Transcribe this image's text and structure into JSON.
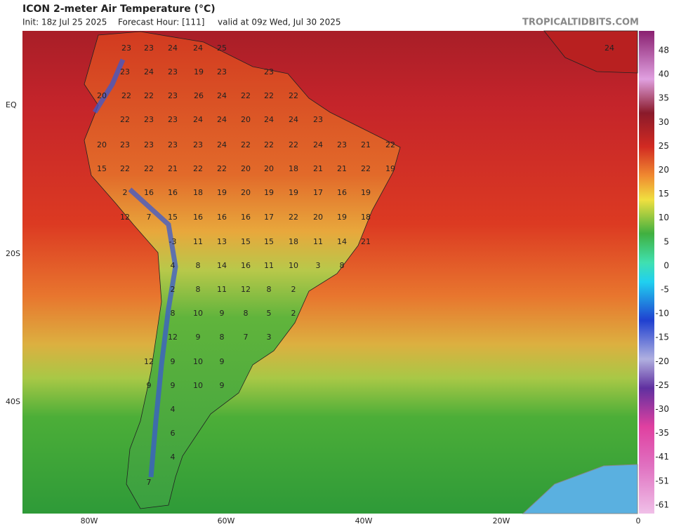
{
  "header": {
    "title": "ICON 2-meter Air Temperature (°C)",
    "init": "Init: 18z Jul 25 2025",
    "forecast": "Forecast Hour: [111]",
    "valid": "valid at 09z Wed, Jul 30 2025",
    "site": "TROPICALTIDBITS.COM"
  },
  "longitude_labels": [
    "80W",
    "60W",
    "40W",
    "20W",
    "0"
  ],
  "latitude_labels": [
    "EQ",
    "20S",
    "40S"
  ],
  "colorbar_labels": [
    48,
    40,
    35,
    30,
    25,
    20,
    15,
    10,
    5,
    0,
    -5,
    -10,
    -15,
    -20,
    -25,
    -30,
    -35,
    -41,
    -51,
    -61
  ],
  "station_values": [
    [
      23,
      23,
      24,
      24,
      25,
      24
    ],
    [
      23,
      24,
      23,
      19,
      23,
      23
    ],
    [
      20,
      22,
      22,
      23,
      26,
      24,
      22,
      22,
      22
    ],
    [
      22,
      23,
      23,
      24,
      24,
      20,
      24,
      24,
      23
    ],
    [
      20,
      23,
      23,
      23,
      23,
      24,
      22,
      22,
      22,
      24,
      23,
      21,
      22
    ],
    [
      15,
      22,
      22,
      21,
      22,
      22,
      20,
      20,
      18,
      21,
      21,
      22,
      19
    ],
    [
      2,
      16,
      16,
      18,
      19,
      20,
      19,
      19,
      17,
      16,
      19
    ],
    [
      12,
      7,
      15,
      16,
      16,
      16,
      17,
      22,
      20,
      19,
      18
    ],
    [
      -3,
      11,
      13,
      15,
      15,
      18,
      11,
      14,
      21
    ],
    [
      4,
      8,
      14,
      16,
      11,
      10,
      3,
      8
    ],
    [
      2,
      8,
      11,
      12,
      8,
      2
    ],
    [
      8,
      10,
      9,
      8,
      5,
      2
    ],
    [
      12,
      9,
      8,
      7,
      3
    ],
    [
      12,
      9,
      10,
      9
    ],
    [
      9,
      9,
      10,
      9
    ],
    [
      4
    ],
    [
      6
    ],
    [
      4
    ],
    [
      7
    ]
  ]
}
